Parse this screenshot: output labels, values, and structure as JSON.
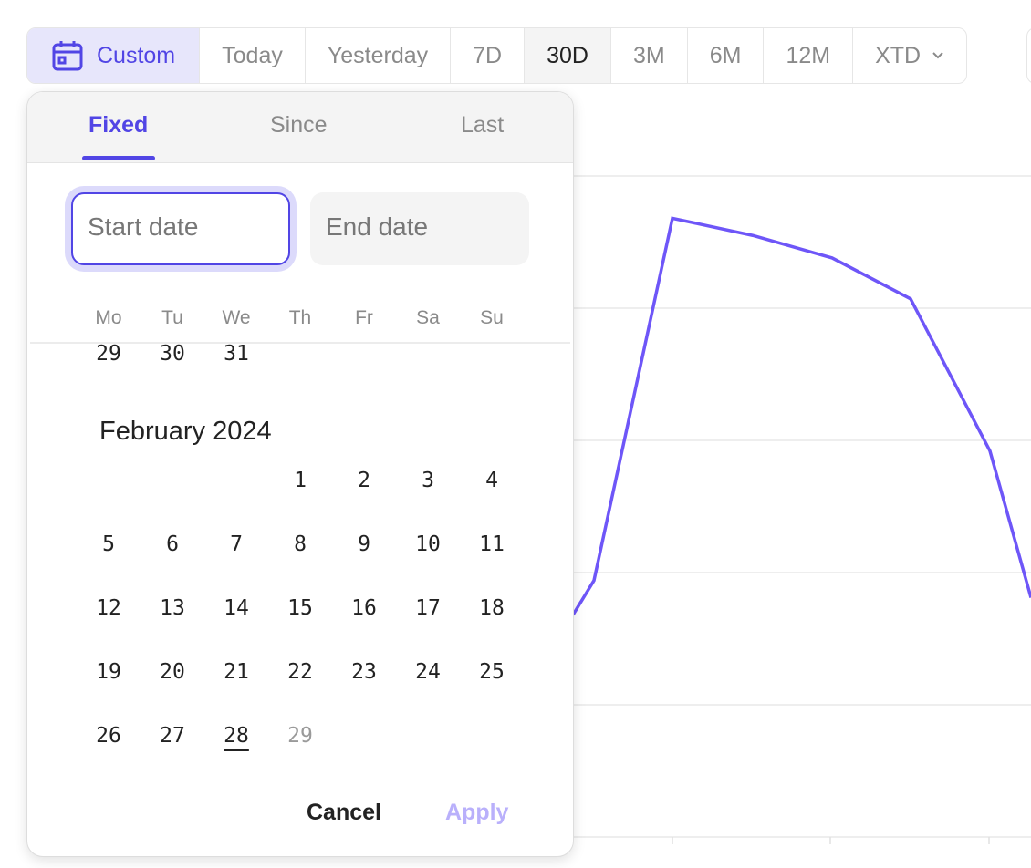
{
  "range_bar": {
    "items": [
      {
        "label": "Custom",
        "icon": "calendar-icon",
        "active": true
      },
      {
        "label": "Today"
      },
      {
        "label": "Yesterday"
      },
      {
        "label": "7D"
      },
      {
        "label": "30D",
        "selected": true
      },
      {
        "label": "3M"
      },
      {
        "label": "6M"
      },
      {
        "label": "12M"
      },
      {
        "label": "XTD",
        "icon": "chevron-down-icon"
      }
    ]
  },
  "picker": {
    "tabs": [
      "Fixed",
      "Since",
      "Last"
    ],
    "start_placeholder": "Start date",
    "end_placeholder": "End date",
    "weekdays": [
      "Mo",
      "Tu",
      "We",
      "Th",
      "Fr",
      "Sa",
      "Su"
    ],
    "prev_month_tail": [
      "29",
      "30",
      "31"
    ],
    "month_title": "February 2024",
    "days": [
      "1",
      "2",
      "3",
      "4",
      "5",
      "6",
      "7",
      "8",
      "9",
      "10",
      "11",
      "12",
      "13",
      "14",
      "15",
      "16",
      "17",
      "18",
      "19",
      "20",
      "21",
      "22",
      "23",
      "24",
      "25",
      "26",
      "27",
      "28",
      "29"
    ],
    "today": "28",
    "disabled_day": "29",
    "cancel": "Cancel",
    "apply": "Apply"
  },
  "colors": {
    "accent": "#5145e5",
    "line": "#6e56f8",
    "apply_disabled": "#b9b0fb"
  },
  "chart_data": {
    "type": "line",
    "grid": true,
    "values": [
      1.68,
      1.94,
      4.68,
      4.55,
      4.38,
      4.07,
      2.92,
      1.81
    ]
  }
}
